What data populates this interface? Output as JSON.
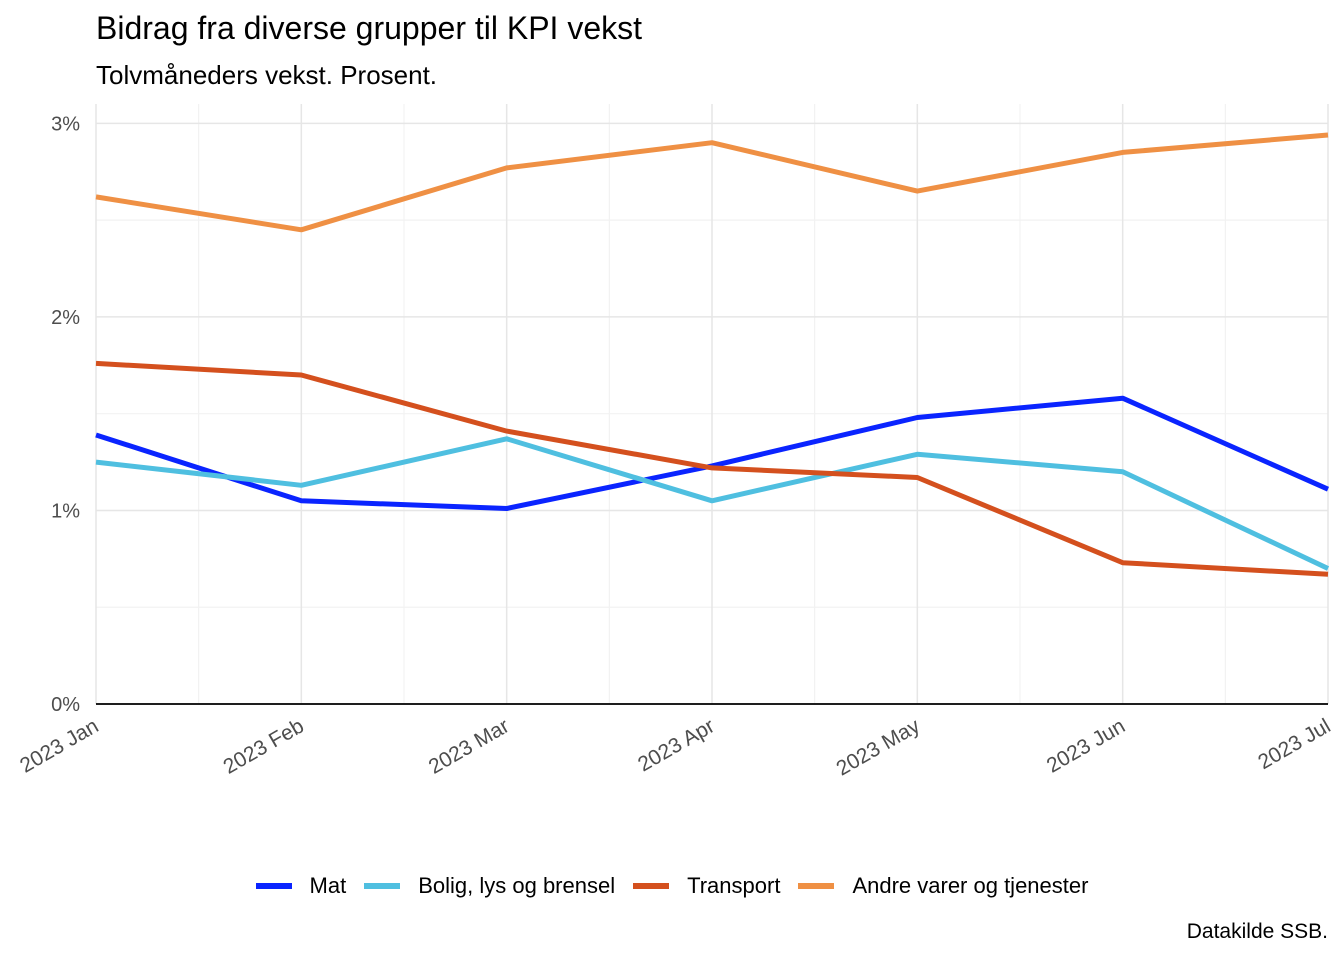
{
  "chart_data": {
    "type": "line",
    "title": "Bidrag fra diverse grupper til KPI vekst",
    "subtitle": "Tolvmåneders vekst. Prosent.",
    "caption": "Datakilde SSB.",
    "x": [
      "2023 Jan",
      "2023 Feb",
      "2023 Mar",
      "2023 Apr",
      "2023 May",
      "2023 Jun",
      "2023 Jul"
    ],
    "xlabel": "",
    "ylabel": "",
    "ylim": [
      0,
      3.1
    ],
    "y_ticks": [
      0,
      1,
      2,
      3
    ],
    "y_tick_labels": [
      "0%",
      "1%",
      "2%",
      "3%"
    ],
    "grid": true,
    "legend_position": "bottom",
    "series": [
      {
        "name": "Mat",
        "color": "#0a24ff",
        "values": [
          1.39,
          1.05,
          1.01,
          1.23,
          1.48,
          1.58,
          1.11
        ]
      },
      {
        "name": "Bolig, lys og brensel",
        "color": "#4fbfe0",
        "values": [
          1.25,
          1.13,
          1.37,
          1.05,
          1.29,
          1.2,
          0.7
        ]
      },
      {
        "name": "Transport",
        "color": "#d4501e",
        "values": [
          1.76,
          1.7,
          1.41,
          1.22,
          1.17,
          0.73,
          0.67
        ]
      },
      {
        "name": "Andre varer og tjenester",
        "color": "#ef9044",
        "values": [
          2.62,
          2.45,
          2.77,
          2.9,
          2.65,
          2.85,
          2.94
        ]
      }
    ]
  }
}
